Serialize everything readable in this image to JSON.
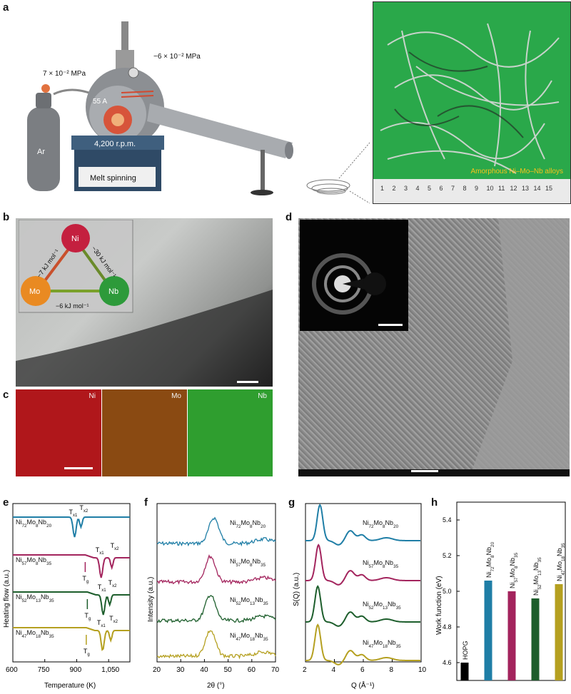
{
  "panels": {
    "a": {
      "label": "a",
      "gas": "Ar",
      "pressure_inlet": "7 × 10⁻² MPa",
      "pressure_chamber": "−6 × 10⁻² MPa",
      "current": "55 A",
      "speed_display": "4,200 r.p.m.",
      "machine": "Melt spinning",
      "photo_caption": "Amorphous Ni–Mo–Nb alloys",
      "ruler_ticks": [
        "1",
        "2",
        "3",
        "4",
        "5",
        "6",
        "7",
        "8",
        "9",
        "10",
        "11",
        "12",
        "13",
        "14",
        "15"
      ]
    },
    "b": {
      "label": "b",
      "elements": [
        "Ni",
        "Mo",
        "Nb"
      ],
      "mixing_enthalpies": {
        "ni_mo": "−7 kJ mol⁻¹",
        "ni_nb": "−30 kJ mol⁻¹",
        "mo_nb": "−6 kJ mol⁻¹"
      }
    },
    "c": {
      "label": "c",
      "maps": [
        "Ni",
        "Mo",
        "Nb"
      ],
      "map_colors": [
        "#b0171b",
        "#8a4a12",
        "#2f9e2f"
      ]
    },
    "d": {
      "label": "d"
    },
    "e": {
      "label": "e",
      "samples": [
        "Ni72Mo8Nb20",
        "Ni57Mo8Nb35",
        "Ni52Mo13Nb35",
        "Ni47Mo18Nb35"
      ],
      "ylabel": "Heating flow (a.u.)",
      "xlabel": "Temperature (K)",
      "xticks": [
        "600",
        "750",
        "900",
        "1,050"
      ],
      "tg": "T",
      "tx1": "T",
      "tx2": "T"
    },
    "f": {
      "label": "f",
      "ylabel": "Intensity (a.u.)",
      "xlabel": "2θ (°)",
      "xticks": [
        "20",
        "30",
        "40",
        "50",
        "60",
        "70"
      ]
    },
    "g": {
      "label": "g",
      "ylabel": "S(Q) (a.u.)",
      "xlabel": "Q (Å⁻¹)",
      "xticks": [
        "2",
        "4",
        "6",
        "8",
        "10"
      ]
    },
    "h": {
      "label": "h",
      "ylabel": "Work function (eV)",
      "yticks": [
        "4.6",
        "4.8",
        "5.0",
        "5.2",
        "5.4"
      ]
    }
  },
  "series_colors": [
    "#1f7ea6",
    "#a3245d",
    "#1d5e2c",
    "#b5a020"
  ],
  "chart_data": [
    {
      "type": "line",
      "panel": "e",
      "xlabel": "Temperature (K)",
      "ylabel": "Heating flow (a.u.)",
      "xlim": [
        600,
        1150
      ],
      "series": [
        {
          "name": "Ni72Mo8Nb20",
          "tx1": 890,
          "tx2": 920,
          "offset": 3
        },
        {
          "name": "Ni57Mo8Nb35",
          "tg": 940,
          "tx1": 1015,
          "tx2": 1065,
          "offset": 2
        },
        {
          "name": "Ni52Mo13Nb35",
          "tg": 950,
          "tx1": 1025,
          "tx2": 1055,
          "offset": 1
        },
        {
          "name": "Ni47Mo18Nb35",
          "tg": 945,
          "tx1": 1022,
          "tx2": 1060,
          "offset": 0
        }
      ]
    },
    {
      "type": "line",
      "panel": "f",
      "xlabel": "2θ (°)",
      "ylabel": "Intensity (a.u.)",
      "xlim": [
        20,
        70
      ],
      "series": [
        {
          "name": "Ni72Mo8Nb20",
          "peak": 44
        },
        {
          "name": "Ni57Mo8Nb35",
          "peak": 42.5
        },
        {
          "name": "Ni52Mo13Nb35",
          "peak": 42.5
        },
        {
          "name": "Ni47Mo18Nb35",
          "peak": 42.5
        }
      ]
    },
    {
      "type": "line",
      "panel": "g",
      "xlabel": "Q (Å⁻¹)",
      "ylabel": "S(Q) (a.u.)",
      "xlim": [
        2,
        10
      ],
      "series": [
        {
          "name": "Ni72Mo8Nb20",
          "peak": 3.0
        },
        {
          "name": "Ni57Mo8Nb35",
          "peak": 2.9
        },
        {
          "name": "Ni52Mo13Nb35",
          "peak": 2.85
        },
        {
          "name": "Ni47Mo18Nb35",
          "peak": 2.85
        }
      ]
    },
    {
      "type": "bar",
      "panel": "h",
      "ylabel": "Work function (eV)",
      "ylim": [
        4.5,
        5.5
      ],
      "categories": [
        "HOPG",
        "Ni72Mo8Nb20",
        "Ni57Mo8Nb35",
        "Ni52Mo13Nb35",
        "Ni47Mo18Nb35"
      ],
      "values": [
        4.6,
        5.06,
        5.0,
        4.96,
        5.04
      ],
      "colors": [
        "#000000",
        "#1f7ea6",
        "#a3245d",
        "#1d5e2c",
        "#b5a020"
      ]
    }
  ]
}
